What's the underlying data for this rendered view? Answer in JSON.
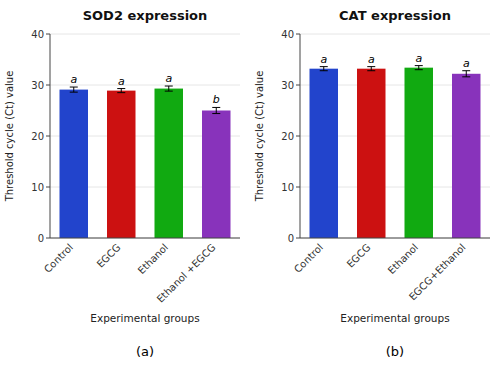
{
  "chart_data": [
    {
      "type": "bar",
      "title": "SOD2 expression",
      "categories": [
        "Control",
        "EGCG",
        "Ethanol",
        "Ethanol +EGCG"
      ],
      "values": [
        29.1,
        28.9,
        29.3,
        25.0
      ],
      "errors": [
        0.5,
        0.4,
        0.5,
        0.6
      ],
      "colors": [
        "#2244cc",
        "#cc1111",
        "#11aa11",
        "#8833bb"
      ],
      "annotations": [
        "a",
        "a",
        "a",
        "b"
      ],
      "ylabel": "Threshold cycle (Ct) value",
      "xlabel": "Experimental groups",
      "ylim": [
        0,
        40
      ],
      "yticks": [
        0,
        10,
        20,
        30,
        40
      ],
      "panel_label": "(a)"
    },
    {
      "type": "bar",
      "title": "CAT expression",
      "categories": [
        "Control",
        "EGCG",
        "Ethanol",
        "EGCG+Ethanol"
      ],
      "values": [
        33.2,
        33.2,
        33.4,
        32.2
      ],
      "errors": [
        0.4,
        0.4,
        0.4,
        0.6
      ],
      "colors": [
        "#2244cc",
        "#cc1111",
        "#11aa11",
        "#8833bb"
      ],
      "annotations": [
        "a",
        "a",
        "a",
        "a"
      ],
      "ylabel": "Threshold cycle (Ct) value",
      "xlabel": "Experimental groups",
      "ylim": [
        0,
        40
      ],
      "yticks": [
        0,
        10,
        20,
        30,
        40
      ],
      "panel_label": "(b)"
    }
  ]
}
